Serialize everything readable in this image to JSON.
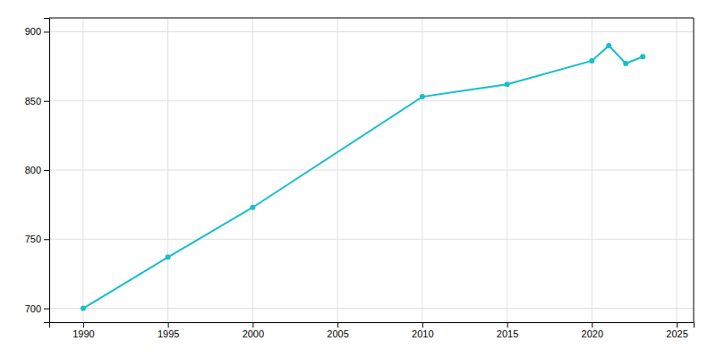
{
  "chart_data": {
    "type": "line",
    "x": [
      1990,
      1995,
      2000,
      2010,
      2015,
      2020,
      2021,
      2022,
      2023
    ],
    "values": [
      700,
      737,
      773,
      853,
      862,
      879,
      890,
      877,
      882
    ],
    "color": "#17BECF",
    "marker": "circle",
    "xlim": [
      1988,
      2026
    ],
    "ylim": [
      690,
      910
    ],
    "xticks": [
      1990,
      1995,
      2000,
      2005,
      2010,
      2015,
      2020,
      2025
    ],
    "yticks": [
      700,
      750,
      800,
      850,
      900
    ],
    "grid": true
  }
}
